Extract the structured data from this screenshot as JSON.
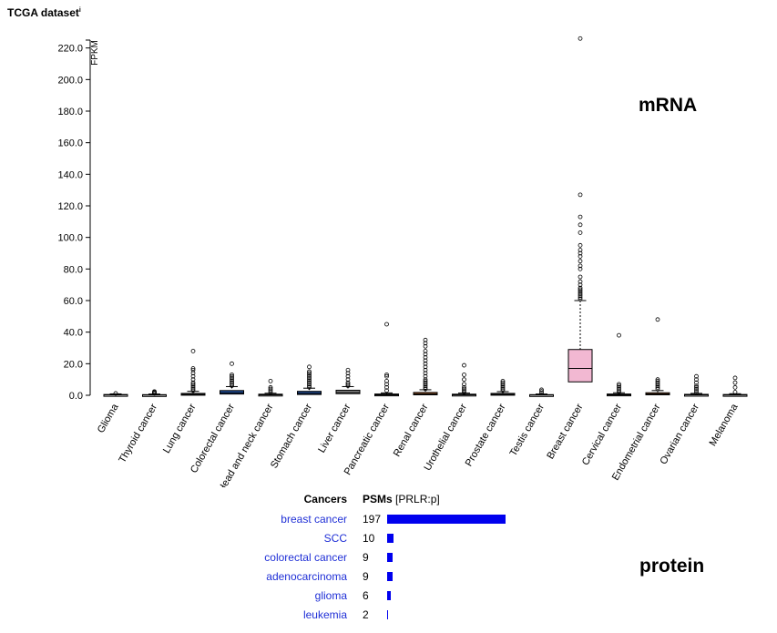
{
  "header": {
    "title": "TCGA dataset",
    "info_mark": "i"
  },
  "labels": {
    "mrna": "mRNA",
    "protein": "protein"
  },
  "chart_data": {
    "type": "boxplot",
    "ylabel": "FPKM",
    "ylim": [
      0,
      225
    ],
    "yticks": [
      "0.0",
      "20.0",
      "40.0",
      "60.0",
      "80.0",
      "100.0",
      "120.0",
      "140.0",
      "160.0",
      "180.0",
      "200.0",
      "220.0"
    ],
    "categories": [
      "Glioma",
      "Thyroid cancer",
      "Lung cancer",
      "Colorectal cancer",
      "Head and neck cancer",
      "Stomach cancer",
      "Liver cancer",
      "Pancreatic cancer",
      "Renal cancer",
      "Urothelial cancer",
      "Prostate cancer",
      "Testis cancer",
      "Breast cancer",
      "Cervical cancer",
      "Endometrial cancer",
      "Ovarian cancer",
      "Melanoma"
    ],
    "series": [
      {
        "q1": 0.1,
        "median": 0.3,
        "q3": 0.5,
        "whisker_low": 0,
        "whisker_high": 0.9,
        "outliers": [
          1.2
        ],
        "color": "#d9d9d9"
      },
      {
        "q1": 0.1,
        "median": 0.2,
        "q3": 0.4,
        "whisker_low": 0,
        "whisker_high": 0.8,
        "outliers": [
          1.2,
          1.6,
          2.0,
          2.4
        ],
        "color": "#d9d9d9"
      },
      {
        "q1": 0.3,
        "median": 0.6,
        "q3": 1.2,
        "whisker_low": 0,
        "whisker_high": 2.5,
        "outliers": [
          3,
          4,
          5,
          6,
          7,
          8,
          10,
          12,
          14,
          16,
          17,
          28
        ],
        "color": "#d9d9d9"
      },
      {
        "q1": 0.8,
        "median": 1.6,
        "q3": 3.0,
        "whisker_low": 0,
        "whisker_high": 5.5,
        "outliers": [
          6,
          7,
          8,
          9,
          10,
          11,
          12,
          13,
          20
        ],
        "color": "#1f4e9a"
      },
      {
        "q1": 0.1,
        "median": 0.3,
        "q3": 0.7,
        "whisker_low": 0,
        "whisker_high": 1.3,
        "outliers": [
          2,
          3,
          4,
          5,
          9
        ],
        "color": "#d9d9d9"
      },
      {
        "q1": 0.5,
        "median": 1.2,
        "q3": 2.5,
        "whisker_low": 0,
        "whisker_high": 4.5,
        "outliers": [
          5,
          6,
          7,
          8,
          9,
          10,
          11,
          12,
          13,
          14,
          15,
          18
        ],
        "color": "#1f4e9a"
      },
      {
        "q1": 1.0,
        "median": 1.8,
        "q3": 3.2,
        "whisker_low": 0,
        "whisker_high": 5.5,
        "outliers": [
          6,
          7,
          8,
          10,
          12,
          14,
          16
        ],
        "color": "#8a8a8a"
      },
      {
        "q1": 0.1,
        "median": 0.3,
        "q3": 0.8,
        "whisker_low": 0,
        "whisker_high": 1.5,
        "outliers": [
          3,
          5,
          7,
          9,
          12,
          13,
          45
        ],
        "color": "#d9d9d9"
      },
      {
        "q1": 0.3,
        "median": 0.8,
        "q3": 1.8,
        "whisker_low": 0,
        "whisker_high": 3.5,
        "outliers": [
          4,
          5,
          6,
          7,
          8,
          9,
          10,
          12,
          14,
          16,
          18,
          20,
          22,
          24,
          26,
          28,
          31,
          33,
          35
        ],
        "color": "#a85d2a"
      },
      {
        "q1": 0.1,
        "median": 0.3,
        "q3": 0.7,
        "whisker_low": 0,
        "whisker_high": 1.4,
        "outliers": [
          2,
          3,
          4,
          5,
          7,
          10,
          13,
          19
        ],
        "color": "#d9d9d9"
      },
      {
        "q1": 0.3,
        "median": 0.6,
        "q3": 1.2,
        "whisker_low": 0,
        "whisker_high": 2.3,
        "outliers": [
          3,
          4,
          5,
          6,
          7,
          8,
          9
        ],
        "color": "#d9d9d9"
      },
      {
        "q1": 0.1,
        "median": 0.2,
        "q3": 0.4,
        "whisker_low": 0,
        "whisker_high": 0.8,
        "outliers": [
          1.5,
          2.5,
          3.5
        ],
        "color": "#d9d9d9"
      },
      {
        "q1": 8.5,
        "median": 17,
        "q3": 29,
        "whisker_low": 0,
        "whisker_high": 60,
        "outliers": [
          61,
          62,
          63,
          64,
          65,
          66,
          67,
          68,
          70,
          72,
          75,
          80,
          82,
          85,
          88,
          90,
          92,
          95,
          103,
          108,
          113,
          127,
          226
        ],
        "color": "#f2b8d2"
      },
      {
        "q1": 0.1,
        "median": 0.3,
        "q3": 0.8,
        "whisker_low": 0,
        "whisker_high": 1.6,
        "outliers": [
          2,
          3,
          4,
          5,
          6,
          7,
          38
        ],
        "color": "#d9d9d9"
      },
      {
        "q1": 0.3,
        "median": 0.8,
        "q3": 1.6,
        "whisker_low": 0,
        "whisker_high": 3,
        "outliers": [
          4,
          5,
          6,
          7,
          8,
          9,
          10,
          48
        ],
        "color": "#a85d2a"
      },
      {
        "q1": 0.1,
        "median": 0.3,
        "q3": 0.6,
        "whisker_low": 0,
        "whisker_high": 1.2,
        "outliers": [
          2,
          3,
          4,
          5,
          6,
          8,
          10,
          12
        ],
        "color": "#d9d9d9"
      },
      {
        "q1": 0.1,
        "median": 0.2,
        "q3": 0.5,
        "whisker_low": 0,
        "whisker_high": 1.0,
        "outliers": [
          2,
          5,
          8,
          11
        ],
        "color": "#d9d9d9"
      }
    ]
  },
  "protein_table": {
    "col_cancer": "Cancers",
    "col_psm": "PSMs",
    "col_psm_sub": "[PRLR:p]",
    "max_psm": 197,
    "bar_color": "#0000ee",
    "rows": [
      {
        "cancer": "breast cancer",
        "psm": 197
      },
      {
        "cancer": "SCC",
        "psm": 10
      },
      {
        "cancer": "colorectal cancer",
        "psm": 9
      },
      {
        "cancer": "adenocarcinoma",
        "psm": 9
      },
      {
        "cancer": "glioma",
        "psm": 6
      },
      {
        "cancer": "leukemia",
        "psm": 2
      }
    ]
  }
}
